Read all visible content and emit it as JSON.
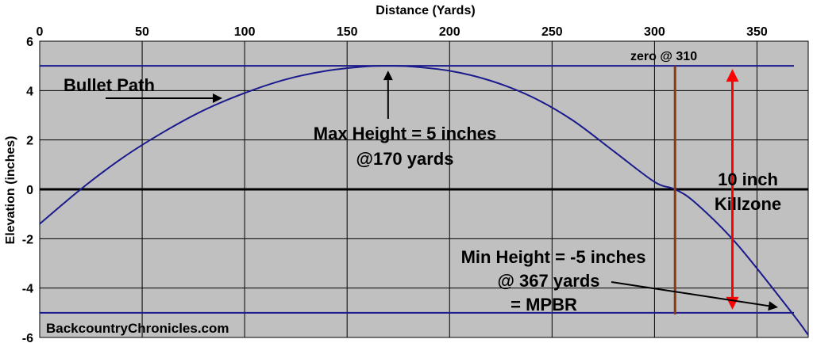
{
  "chart_data": {
    "type": "line",
    "title": "",
    "xlabel": "Distance (Yards)",
    "ylabel": "Elevation (inches)",
    "xlim": [
      0,
      375
    ],
    "ylim": [
      -6,
      6
    ],
    "x_ticks": [
      "0",
      "50",
      "100",
      "150",
      "200",
      "250",
      "300",
      "350"
    ],
    "y_ticks": [
      "6",
      "4",
      "2",
      "0",
      "-2",
      "-4",
      "-6"
    ],
    "grid": true,
    "legend": "none",
    "series": [
      {
        "name": "Bullet Path",
        "color": "#1a1a8c",
        "x": [
          0,
          20,
          40,
          60,
          80,
          100,
          120,
          140,
          160,
          170,
          180,
          200,
          220,
          240,
          260,
          280,
          300,
          310,
          320,
          340,
          367,
          375
        ],
        "y": [
          -1.4,
          0.0,
          1.25,
          2.3,
          3.2,
          3.9,
          4.45,
          4.8,
          4.98,
          5.0,
          4.98,
          4.8,
          4.4,
          3.75,
          2.8,
          1.55,
          0.3,
          0.0,
          -0.55,
          -2.2,
          -5.0,
          -5.9
        ]
      }
    ],
    "reference_lines": {
      "upper": {
        "y": 5,
        "color": "#1a1a8c"
      },
      "zero": {
        "y": 0,
        "color": "#000000"
      },
      "lower": {
        "y": -5,
        "color": "#1a1a8c"
      },
      "zero_range_marker": {
        "x": 310,
        "y_from": -6,
        "y_to": 5,
        "color": "#8b3a10"
      },
      "killzone_marker": {
        "x": 338,
        "y_from": -5,
        "y_to": 5,
        "color": "#ff0000"
      }
    },
    "annotations": {
      "bullet_path": "Bullet Path",
      "zero": "zero @ 310",
      "max_line1": "Max Height = 5 inches",
      "max_line2": "@170 yards",
      "killzone_line1": "10 inch",
      "killzone_line2": "Killzone",
      "min_line1": "Min Height = -5 inches",
      "min_line2": "@ 367 yards",
      "min_line3": "= MPBR",
      "credit": "BackcountryChronicles.com"
    },
    "colors": {
      "plot_background": "#c0c0c0",
      "grid": "#000000",
      "arrow": "#000000"
    }
  }
}
